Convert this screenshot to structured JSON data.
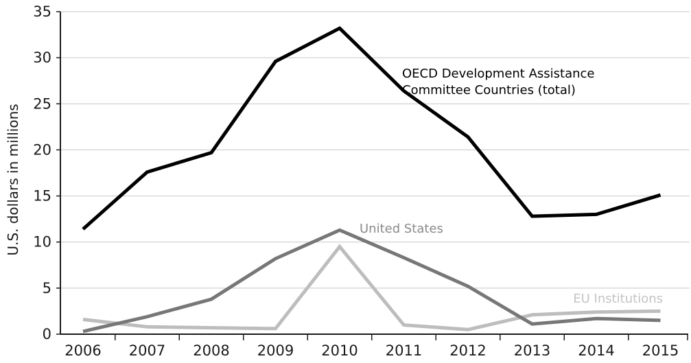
{
  "chart_data": {
    "type": "line",
    "title": "",
    "xlabel": "",
    "ylabel": "U.S. dollars in millions",
    "x": [
      "2006",
      "2007",
      "2008",
      "2009",
      "2010",
      "2011",
      "2012",
      "2013",
      "2014",
      "2015"
    ],
    "ylim": [
      0,
      35
    ],
    "yticks": [
      0,
      5,
      10,
      15,
      20,
      25,
      30,
      35
    ],
    "grid": true,
    "legend": "none (series labeled directly on chart)",
    "series": [
      {
        "name": "OECD Development Assistance Committee Countries (total)",
        "label_lines": [
          "OECD Development Assistance",
          "Committee Countries (total)"
        ],
        "color": "#000000",
        "label_color": "#000000",
        "values": [
          11.4,
          17.6,
          19.7,
          29.6,
          33.2,
          26.4,
          21.4,
          12.8,
          13.0,
          15.1
        ]
      },
      {
        "name": "United States",
        "label_lines": [
          "United States"
        ],
        "color": "#777777",
        "label_color": "#8a8a8a",
        "values": [
          0.3,
          1.9,
          3.8,
          8.2,
          11.3,
          8.3,
          5.2,
          1.1,
          1.7,
          1.5
        ]
      },
      {
        "name": "EU Institutions",
        "label_lines": [
          "EU Institutions"
        ],
        "color": "#bdbdbd",
        "label_color": "#c4c4c4",
        "values": [
          1.6,
          0.8,
          0.7,
          0.6,
          9.5,
          1.0,
          0.5,
          2.1,
          2.4,
          2.5
        ]
      }
    ]
  }
}
